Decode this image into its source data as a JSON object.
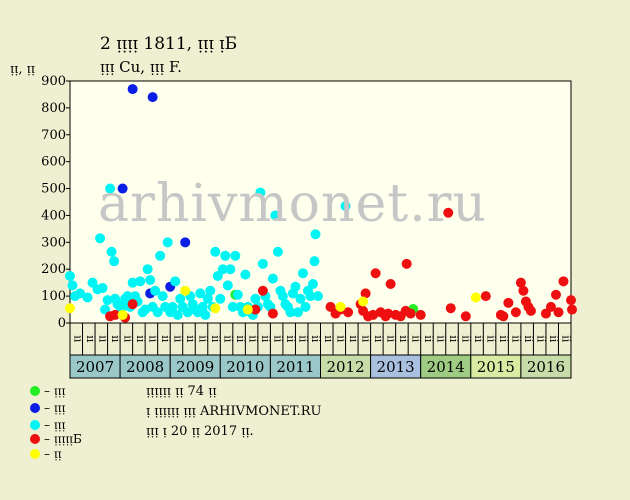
{
  "header": {
    "title": "2 ᴉᴉᴉᴉ 1811, ᴉᴉᴉ ᴉБ",
    "subtitle": "ᴉᴉᴉ Cu, ᴉᴉᴉ F.",
    "y_unit": "ᴉᴉ, ᴉᴉ"
  },
  "watermark": "arhivmonet.ru",
  "legend": [
    {
      "label": "– ᴉᴉᴉ",
      "color": "#22ee22"
    },
    {
      "label": "– ᴉᴉᴉ",
      "color": "#0a1ee6"
    },
    {
      "label": "– ᴉᴉᴉ",
      "color": "#00f4f4"
    },
    {
      "label": "– ᴉᴉᴉᴉᴉБ",
      "color": "#ee1010"
    },
    {
      "label": "– ᴉᴉ",
      "color": "#ffff00"
    }
  ],
  "info": {
    "line1": "ᴉᴉᴉᴉᴉᴉ ᴉᴉ 74 ᴉᴉ",
    "line2": "ᴉ ᴉᴉᴉᴉᴉᴉ ᴉᴉᴉ ARHIVMONET.RU",
    "line3": "ᴉᴉᴉ ᴉ 20 ᴉᴉ 2017 ᴉᴉ."
  },
  "chart_data": {
    "type": "scatter",
    "title": "2 ᴉᴉᴉᴉ 1811, ᴉᴉᴉ ᴉБ",
    "ylabel": "ᴉᴉ, ᴉᴉ",
    "ylim": [
      0,
      900
    ],
    "yticks": [
      0,
      100,
      200,
      300,
      400,
      500,
      600,
      700,
      800,
      900
    ],
    "grid": false,
    "x_start_year": 2007,
    "x_end_year": 2017,
    "years": [
      {
        "label": "2007",
        "color": "#9ac8c8"
      },
      {
        "label": "2008",
        "color": "#9ac8c8"
      },
      {
        "label": "2009",
        "color": "#9ac8c8"
      },
      {
        "label": "2010",
        "color": "#9ac8c8"
      },
      {
        "label": "2011",
        "color": "#9ac8c8"
      },
      {
        "label": "2012",
        "color": "#c7dca9"
      },
      {
        "label": "2013",
        "color": "#a9c1de"
      },
      {
        "label": "2014",
        "color": "#9ecc82"
      },
      {
        "label": "2015",
        "color": "#d8eca3"
      },
      {
        "label": "2016",
        "color": "#c7dca9"
      }
    ],
    "month_labels": [
      "ᴉᴉ",
      "ᴉᴉ",
      "ᴉᴉ",
      "ᴉᴉ"
    ],
    "series": [
      {
        "name": "ᴉᴉᴉ",
        "color": "#22ee22",
        "points": [
          [
            2010.3,
            105
          ],
          [
            2013.85,
            52
          ]
        ]
      },
      {
        "name": "ᴉᴉᴉ",
        "color": "#0a1ee6",
        "points": [
          [
            2008.05,
            500
          ],
          [
            2008.25,
            870
          ],
          [
            2008.65,
            840
          ],
          [
            2008.6,
            110
          ],
          [
            2009.0,
            135
          ],
          [
            2009.3,
            300
          ]
        ]
      },
      {
        "name": "ᴉᴉᴉ",
        "color": "#00f4f4",
        "points": [
          [
            2007.0,
            175
          ],
          [
            2007.05,
            140
          ],
          [
            2007.1,
            100
          ],
          [
            2007.2,
            110
          ],
          [
            2007.35,
            95
          ],
          [
            2007.45,
            150
          ],
          [
            2007.55,
            125
          ],
          [
            2007.6,
            315
          ],
          [
            2007.65,
            130
          ],
          [
            2007.7,
            50
          ],
          [
            2007.75,
            85
          ],
          [
            2007.8,
            500
          ],
          [
            2007.83,
            265
          ],
          [
            2007.88,
            230
          ],
          [
            2007.9,
            90
          ],
          [
            2007.95,
            70
          ],
          [
            2008.0,
            40
          ],
          [
            2008.05,
            60
          ],
          [
            2008.1,
            90
          ],
          [
            2008.15,
            100
          ],
          [
            2008.2,
            60
          ],
          [
            2008.25,
            150
          ],
          [
            2008.3,
            100
          ],
          [
            2008.35,
            80
          ],
          [
            2008.4,
            155
          ],
          [
            2008.45,
            40
          ],
          [
            2008.5,
            50
          ],
          [
            2008.55,
            200
          ],
          [
            2008.6,
            160
          ],
          [
            2008.65,
            60
          ],
          [
            2008.7,
            120
          ],
          [
            2008.75,
            40
          ],
          [
            2008.8,
            250
          ],
          [
            2008.85,
            100
          ],
          [
            2008.9,
            60
          ],
          [
            2008.95,
            300
          ],
          [
            2009.0,
            40
          ],
          [
            2009.05,
            60
          ],
          [
            2009.1,
            155
          ],
          [
            2009.15,
            30
          ],
          [
            2009.2,
            90
          ],
          [
            2009.25,
            60
          ],
          [
            2009.35,
            40
          ],
          [
            2009.4,
            100
          ],
          [
            2009.45,
            70
          ],
          [
            2009.5,
            50
          ],
          [
            2009.55,
            40
          ],
          [
            2009.6,
            110
          ],
          [
            2009.65,
            60
          ],
          [
            2009.7,
            30
          ],
          [
            2009.75,
            90
          ],
          [
            2009.8,
            120
          ],
          [
            2009.85,
            60
          ],
          [
            2009.9,
            265
          ],
          [
            2009.95,
            175
          ],
          [
            2010.0,
            90
          ],
          [
            2010.05,
            200
          ],
          [
            2010.1,
            250
          ],
          [
            2010.15,
            140
          ],
          [
            2010.2,
            200
          ],
          [
            2010.25,
            60
          ],
          [
            2010.3,
            250
          ],
          [
            2010.35,
            105
          ],
          [
            2010.4,
            60
          ],
          [
            2010.45,
            40
          ],
          [
            2010.5,
            180
          ],
          [
            2010.55,
            60
          ],
          [
            2010.6,
            40
          ],
          [
            2010.65,
            30
          ],
          [
            2010.7,
            90
          ],
          [
            2010.75,
            60
          ],
          [
            2010.8,
            485
          ],
          [
            2010.85,
            220
          ],
          [
            2010.9,
            100
          ],
          [
            2010.95,
            70
          ],
          [
            2011.0,
            60
          ],
          [
            2011.05,
            165
          ],
          [
            2011.1,
            400
          ],
          [
            2011.15,
            265
          ],
          [
            2011.2,
            120
          ],
          [
            2011.25,
            100
          ],
          [
            2011.3,
            70
          ],
          [
            2011.35,
            60
          ],
          [
            2011.4,
            40
          ],
          [
            2011.45,
            110
          ],
          [
            2011.5,
            135
          ],
          [
            2011.55,
            40
          ],
          [
            2011.6,
            90
          ],
          [
            2011.65,
            185
          ],
          [
            2011.7,
            60
          ],
          [
            2011.75,
            120
          ],
          [
            2011.8,
            100
          ],
          [
            2011.85,
            145
          ],
          [
            2011.88,
            230
          ],
          [
            2011.9,
            330
          ],
          [
            2011.95,
            100
          ],
          [
            2012.5,
            435
          ]
        ]
      },
      {
        "name": "ᴉᴉᴉᴉᴉБ",
        "color": "#ee1010",
        "points": [
          [
            2007.8,
            25
          ],
          [
            2007.9,
            30
          ],
          [
            2008.1,
            20
          ],
          [
            2008.25,
            70
          ],
          [
            2010.85,
            120
          ],
          [
            2011.05,
            35
          ],
          [
            2010.7,
            50
          ],
          [
            2012.2,
            60
          ],
          [
            2012.3,
            35
          ],
          [
            2012.4,
            50
          ],
          [
            2012.55,
            40
          ],
          [
            2012.8,
            70
          ],
          [
            2012.85,
            45
          ],
          [
            2012.9,
            110
          ],
          [
            2012.95,
            25
          ],
          [
            2013.05,
            30
          ],
          [
            2013.1,
            185
          ],
          [
            2013.2,
            40
          ],
          [
            2013.3,
            25
          ],
          [
            2013.35,
            35
          ],
          [
            2013.4,
            145
          ],
          [
            2013.5,
            30
          ],
          [
            2013.6,
            25
          ],
          [
            2013.7,
            45
          ],
          [
            2013.72,
            220
          ],
          [
            2013.8,
            35
          ],
          [
            2014.0,
            30
          ],
          [
            2014.55,
            410
          ],
          [
            2014.6,
            55
          ],
          [
            2014.9,
            25
          ],
          [
            2015.3,
            100
          ],
          [
            2015.6,
            30
          ],
          [
            2015.65,
            25
          ],
          [
            2015.75,
            75
          ],
          [
            2015.9,
            40
          ],
          [
            2016.0,
            150
          ],
          [
            2016.05,
            120
          ],
          [
            2016.1,
            80
          ],
          [
            2016.15,
            60
          ],
          [
            2016.2,
            45
          ],
          [
            2016.5,
            35
          ],
          [
            2016.6,
            60
          ],
          [
            2016.7,
            105
          ],
          [
            2016.75,
            40
          ],
          [
            2016.85,
            155
          ],
          [
            2017.0,
            85
          ],
          [
            2017.02,
            50
          ]
        ]
      },
      {
        "name": "ᴉᴉ",
        "color": "#ffff00",
        "points": [
          [
            2007.0,
            55
          ],
          [
            2008.05,
            30
          ],
          [
            2009.3,
            120
          ],
          [
            2009.9,
            55
          ],
          [
            2010.55,
            50
          ],
          [
            2012.4,
            60
          ],
          [
            2012.85,
            80
          ],
          [
            2015.1,
            95
          ]
        ]
      }
    ]
  }
}
